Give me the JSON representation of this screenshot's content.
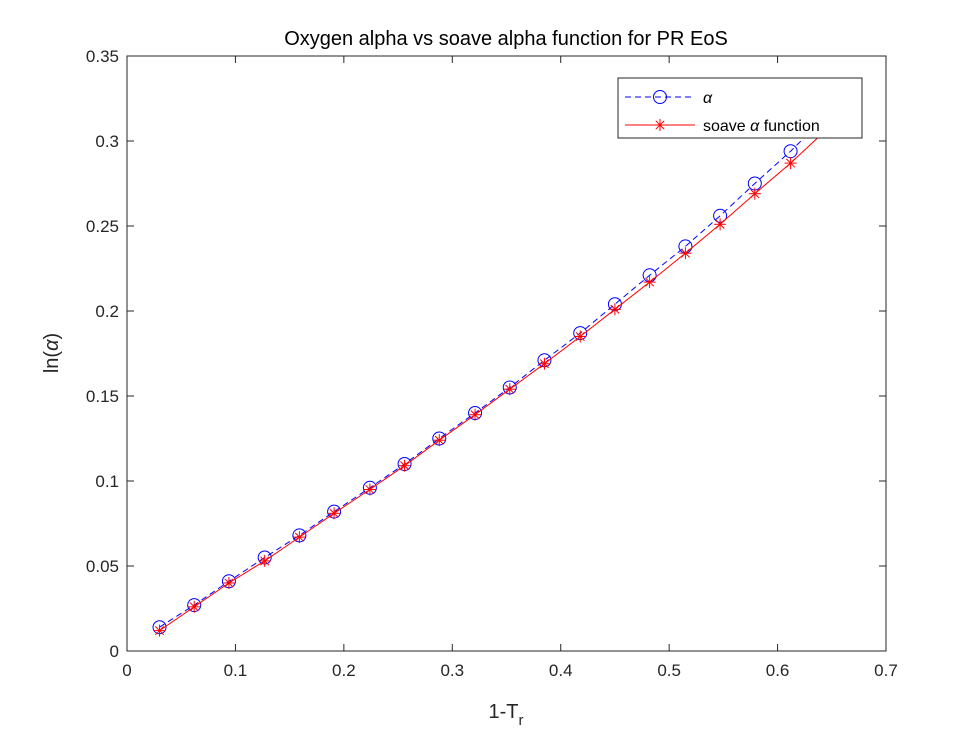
{
  "chart_data": {
    "type": "line",
    "title": "Oxygen alpha vs soave alpha function for PR EoS",
    "xlabel": {
      "base": "1-T",
      "subscript": "r"
    },
    "ylabel": {
      "prefix": "ln(",
      "symbol": "α",
      "suffix": ")"
    },
    "xlim": [
      0,
      0.7
    ],
    "ylim": [
      0,
      0.35
    ],
    "xticks": [
      0,
      0.1,
      0.2,
      0.3,
      0.4,
      0.5,
      0.6,
      0.7
    ],
    "xtick_labels": [
      "0",
      "0.1",
      "0.2",
      "0.3",
      "0.4",
      "0.5",
      "0.6",
      "0.7"
    ],
    "yticks": [
      0,
      0.05,
      0.1,
      0.15,
      0.2,
      0.25,
      0.3,
      0.35
    ],
    "ytick_labels": [
      "0",
      "0.05",
      "0.1",
      "0.15",
      "0.2",
      "0.25",
      "0.3",
      "0.35"
    ],
    "grid": false,
    "legend_position": "top-right",
    "x": [
      0.03,
      0.062,
      0.094,
      0.127,
      0.159,
      0.191,
      0.224,
      0.256,
      0.288,
      0.321,
      0.353,
      0.385,
      0.418,
      0.45,
      0.482,
      0.515,
      0.547,
      0.579,
      0.612,
      0.644
    ],
    "series": [
      {
        "name": "α",
        "legend": {
          "prefix": "",
          "symbol": "α",
          "suffix": ""
        },
        "color": "#0000ff",
        "line_style": "dashed",
        "marker": "circle",
        "values": [
          0.014,
          0.027,
          0.041,
          0.055,
          0.068,
          0.082,
          0.096,
          0.11,
          0.125,
          0.14,
          0.155,
          0.171,
          0.187,
          0.204,
          0.221,
          0.238,
          0.256,
          0.275,
          0.294,
          0.314
        ]
      },
      {
        "name": "soave α function",
        "legend": {
          "prefix": "soave ",
          "symbol": "α",
          "suffix": " function"
        },
        "color": "#ff0000",
        "line_style": "solid",
        "marker": "asterisk",
        "values": [
          0.012,
          0.026,
          0.04,
          0.053,
          0.067,
          0.081,
          0.095,
          0.109,
          0.124,
          0.139,
          0.154,
          0.169,
          0.185,
          0.201,
          0.217,
          0.234,
          0.251,
          0.269,
          0.287,
          0.306
        ]
      }
    ]
  }
}
